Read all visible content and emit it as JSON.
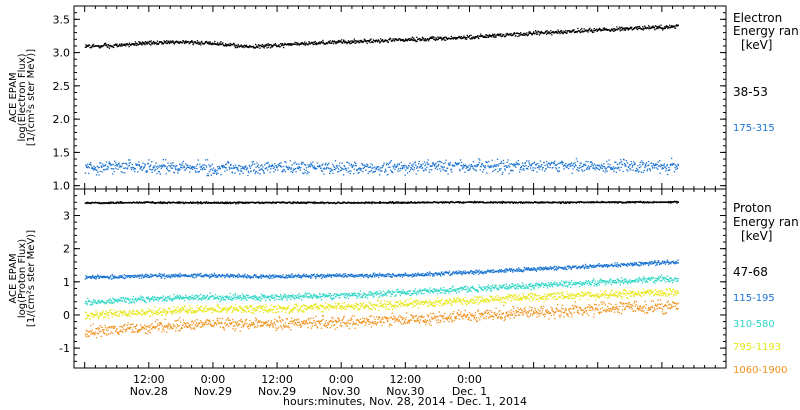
{
  "chart_data": [
    {
      "type": "scatter",
      "panel": "electron",
      "ylabel_lines": [
        "ACE EPAM",
        "log(Electron Flux)",
        "[1/(cm²s ster MeV)]"
      ],
      "legend_title": [
        "Electron",
        "Energy ran",
        "[keV]"
      ],
      "ylim": [
        0.95,
        3.7
      ],
      "yticks": [
        1.0,
        1.5,
        2.0,
        2.5,
        3.0,
        3.5
      ],
      "ytick_labels": [
        "1.0",
        "1.5",
        "2.0",
        "2.5",
        "3.0",
        "3.5"
      ],
      "series": [
        {
          "name": "38-53",
          "color": "#000000",
          "x": [
            0,
            6,
            12,
            18,
            24,
            30,
            36,
            42,
            48,
            54,
            60,
            66,
            72,
            78,
            84,
            90,
            96,
            102,
            108,
            111
          ],
          "y": [
            3.1,
            3.12,
            3.15,
            3.17,
            3.15,
            3.1,
            3.12,
            3.15,
            3.17,
            3.18,
            3.2,
            3.22,
            3.24,
            3.27,
            3.3,
            3.32,
            3.35,
            3.37,
            3.39,
            3.4
          ],
          "spread": 0.025
        },
        {
          "name": "175-315",
          "color": "#1a73d1",
          "x": [
            0,
            6,
            12,
            18,
            24,
            30,
            36,
            42,
            48,
            54,
            60,
            66,
            72,
            78,
            84,
            90,
            96,
            102,
            108,
            111
          ],
          "y": [
            1.28,
            1.3,
            1.29,
            1.28,
            1.27,
            1.28,
            1.29,
            1.28,
            1.27,
            1.28,
            1.29,
            1.3,
            1.29,
            1.3,
            1.31,
            1.3,
            1.29,
            1.3,
            1.31,
            1.3
          ],
          "spread": 0.08
        }
      ]
    },
    {
      "type": "scatter",
      "panel": "proton",
      "ylabel_lines": [
        "ACE EPAM",
        "log(Proton Flux)",
        "[1/(cm²s ster MeV)]"
      ],
      "legend_title": [
        "Proton",
        "Energy ran",
        "[keV]"
      ],
      "ylim": [
        -1.6,
        3.8
      ],
      "yticks": [
        -1,
        0,
        1,
        2,
        3
      ],
      "ytick_labels": [
        "-1",
        "0",
        "1",
        "2",
        "3"
      ],
      "series": [
        {
          "name": "47-68",
          "color": "#000000",
          "x": [
            0,
            12,
            24,
            36,
            48,
            60,
            72,
            84,
            96,
            111
          ],
          "y": [
            3.4,
            3.41,
            3.4,
            3.41,
            3.4,
            3.41,
            3.42,
            3.41,
            3.42,
            3.42
          ],
          "spread": 0.02
        },
        {
          "name": "115-195",
          "color": "#1a73d1",
          "x": [
            0,
            12,
            24,
            36,
            48,
            60,
            66,
            72,
            78,
            84,
            90,
            96,
            102,
            108,
            111
          ],
          "y": [
            1.15,
            1.2,
            1.2,
            1.18,
            1.2,
            1.22,
            1.25,
            1.3,
            1.35,
            1.4,
            1.45,
            1.5,
            1.55,
            1.6,
            1.62
          ],
          "spread": 0.05
        },
        {
          "name": "310-580",
          "color": "#2fd6c6",
          "x": [
            0,
            12,
            24,
            36,
            48,
            60,
            66,
            72,
            78,
            84,
            90,
            96,
            102,
            108,
            111
          ],
          "y": [
            0.4,
            0.5,
            0.55,
            0.55,
            0.6,
            0.7,
            0.75,
            0.8,
            0.85,
            0.9,
            0.95,
            1.0,
            1.05,
            1.1,
            1.1
          ],
          "spread": 0.08
        },
        {
          "name": "795-1193",
          "color": "#e6e619",
          "x": [
            0,
            12,
            24,
            36,
            48,
            60,
            66,
            72,
            78,
            84,
            90,
            96,
            102,
            108,
            111
          ],
          "y": [
            0.0,
            0.1,
            0.2,
            0.2,
            0.25,
            0.35,
            0.4,
            0.45,
            0.5,
            0.55,
            0.6,
            0.62,
            0.65,
            0.68,
            0.7
          ],
          "spread": 0.1
        },
        {
          "name": "1060-1900",
          "color": "#f0901a",
          "x": [
            0,
            12,
            24,
            36,
            48,
            60,
            66,
            72,
            78,
            84,
            90,
            96,
            102,
            108,
            111
          ],
          "y": [
            -0.5,
            -0.35,
            -0.25,
            -0.25,
            -0.2,
            -0.1,
            -0.05,
            0.0,
            0.05,
            0.1,
            0.15,
            0.2,
            0.25,
            0.28,
            0.3
          ],
          "spread": 0.15
        }
      ]
    }
  ],
  "xaxis": {
    "xlim": [
      -2,
      120
    ],
    "label": "hours:minutes, Nov. 28, 2014 - Dec. 1, 2014",
    "ticks": [
      {
        "x": 12,
        "time": "12:00",
        "date": "Nov.28"
      },
      {
        "x": 24,
        "time": "0:00",
        "date": "Nov.29"
      },
      {
        "x": 36,
        "time": "12:00",
        "date": "Nov.29"
      },
      {
        "x": 48,
        "time": "0:00",
        "date": "Nov.30"
      },
      {
        "x": 60,
        "time": "12:00",
        "date": "Nov.30"
      },
      {
        "x": 72,
        "time": "0:00",
        "date": "Dec. 1"
      }
    ]
  }
}
